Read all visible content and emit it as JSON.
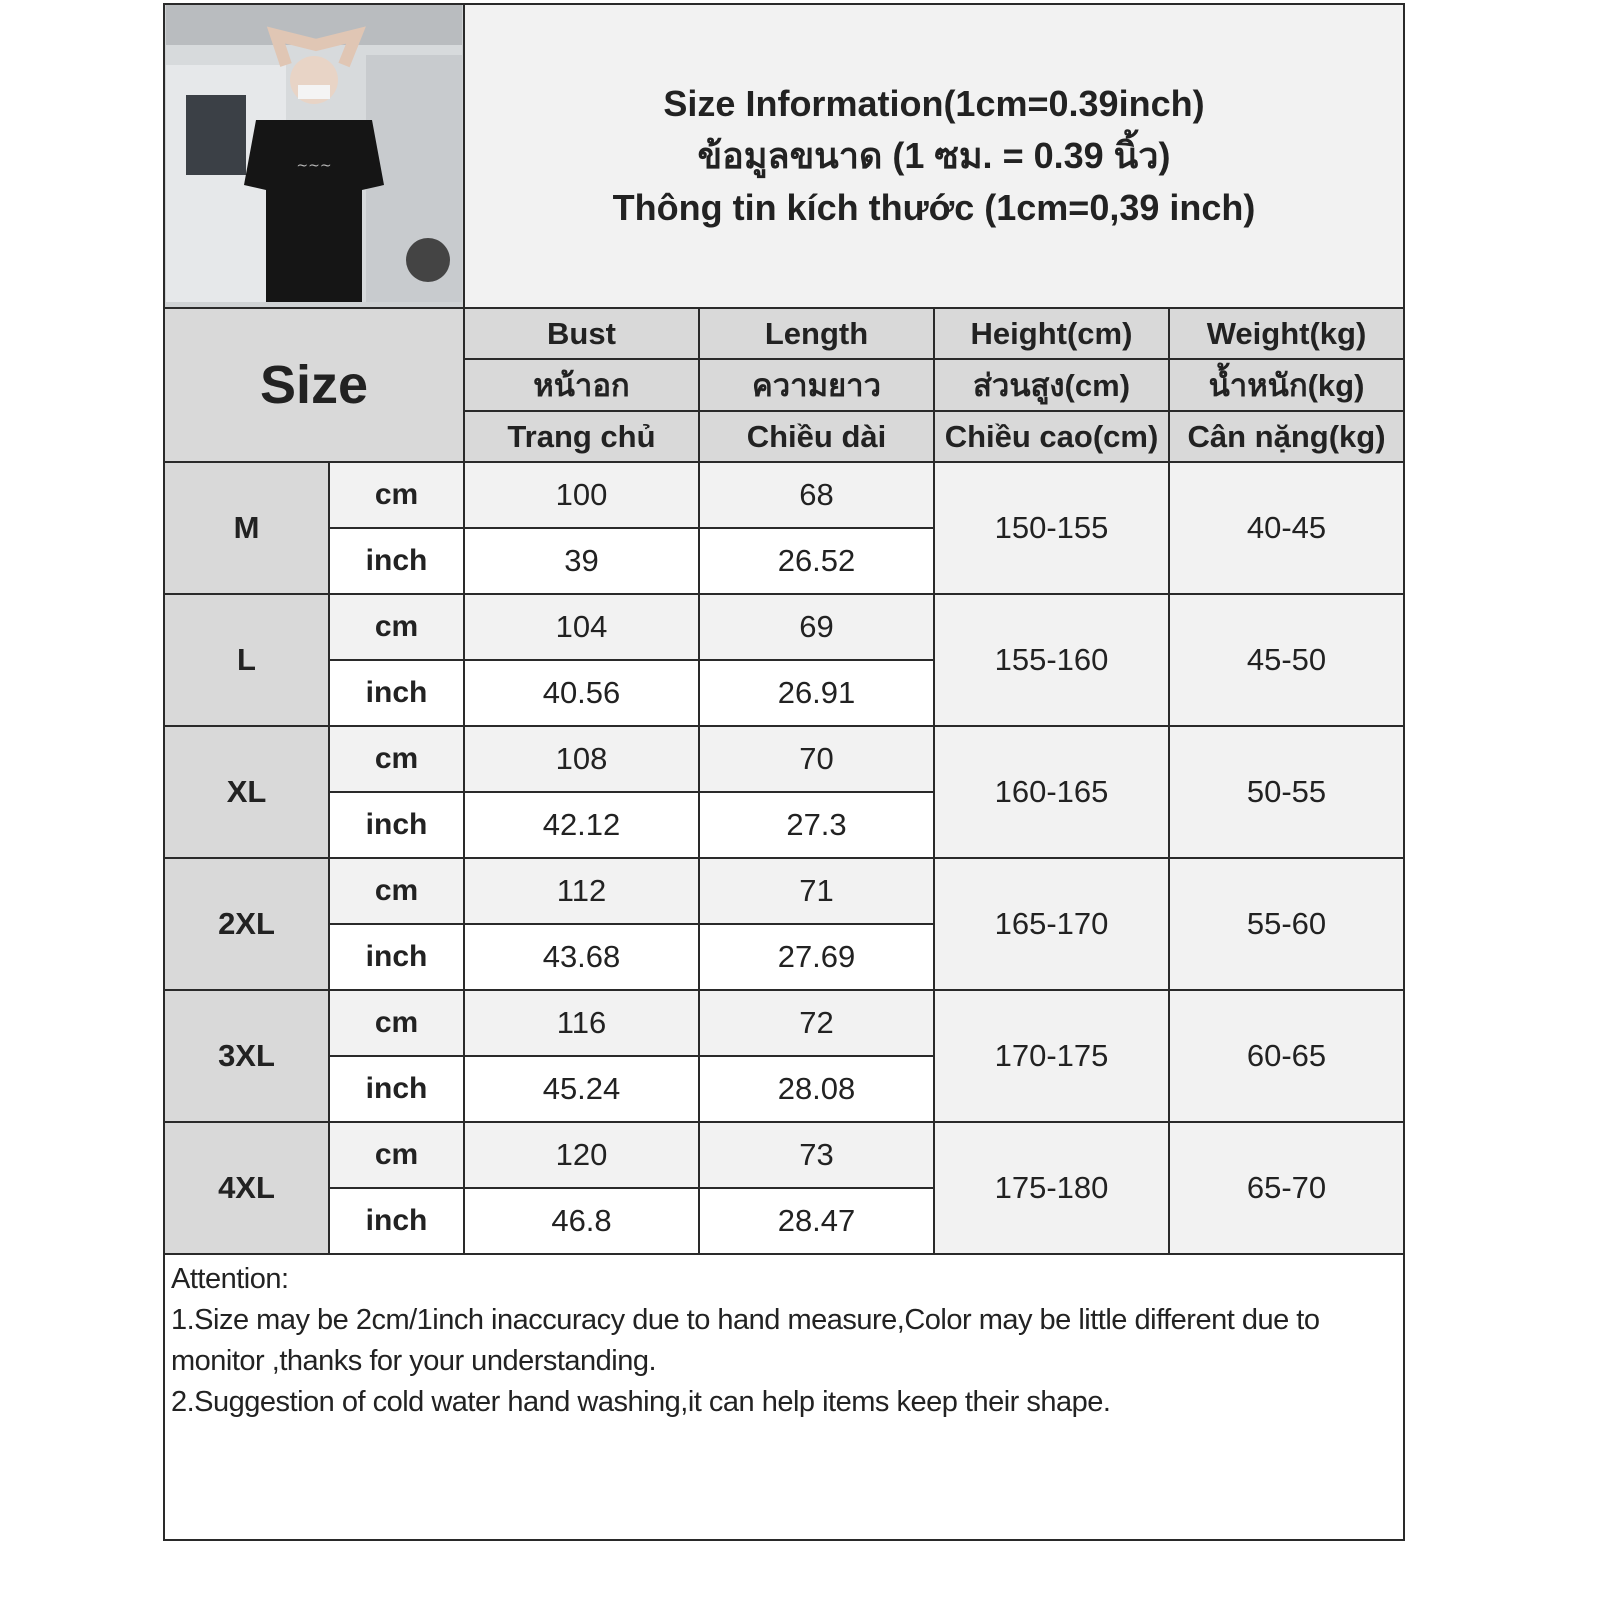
{
  "title_lines": [
    "Size Information(1cm=0.39inch)",
    "ข้อมูลขนาด (1 ซม. = 0.39 นิ้ว)",
    "Thông tin kích thước (1cm=0,39 inch)"
  ],
  "size_header": "Size",
  "columns": [
    {
      "en": "Bust",
      "th": "หน้าอก",
      "vi": "Trang chủ"
    },
    {
      "en": "Length",
      "th": "ความยาว",
      "vi": "Chiều dài"
    },
    {
      "en": "Height(cm)",
      "th": "ส่วนสูง(cm)",
      "vi": "Chiều cao(cm)"
    },
    {
      "en": "Weight(kg)",
      "th": "น้ำหนัก(kg)",
      "vi": "Cân nặng(kg)"
    }
  ],
  "unit_labels": {
    "cm": "cm",
    "inch": "inch"
  },
  "rows": [
    {
      "size": "M",
      "bust_cm": "100",
      "length_cm": "68",
      "bust_inch": "39",
      "length_inch": "26.52",
      "height": "150-155",
      "weight": "40-45"
    },
    {
      "size": "L",
      "bust_cm": "104",
      "length_cm": "69",
      "bust_inch": "40.56",
      "length_inch": "26.91",
      "height": "155-160",
      "weight": "45-50"
    },
    {
      "size": "XL",
      "bust_cm": "108",
      "length_cm": "70",
      "bust_inch": "42.12",
      "length_inch": "27.3",
      "height": "160-165",
      "weight": "50-55"
    },
    {
      "size": "2XL",
      "bust_cm": "112",
      "length_cm": "71",
      "bust_inch": "43.68",
      "length_inch": "27.69",
      "height": "165-170",
      "weight": "55-60"
    },
    {
      "size": "3XL",
      "bust_cm": "116",
      "length_cm": "72",
      "bust_inch": "45.24",
      "length_inch": "28.08",
      "height": "170-175",
      "weight": "60-65"
    },
    {
      "size": "4XL",
      "bust_cm": "120",
      "length_cm": "73",
      "bust_inch": "46.8",
      "length_inch": "28.47",
      "height": "175-180",
      "weight": "65-70"
    }
  ],
  "attention": {
    "heading": "Attention:",
    "notes": [
      "1.Size may be 2cm/1inch inaccuracy due to hand measure,Color may be little different due to monitor ,thanks for your understanding.",
      "2.Suggestion of cold water hand washing,it can help items keep their shape."
    ]
  },
  "colors": {
    "header_bg": "#d9d9d9",
    "cell_bg": "#f2f2f2",
    "border": "#2a2a2a"
  }
}
